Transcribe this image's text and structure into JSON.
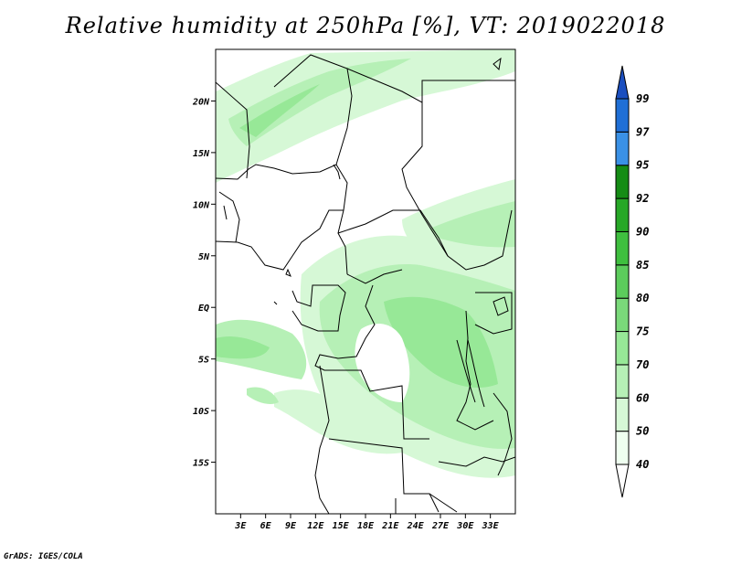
{
  "title": "Relative humidity at 250hPa [%], VT: 2019022018",
  "credit": "GrADS: IGES/COLA",
  "map": {
    "lon_range": [
      0,
      36
    ],
    "lat_range": [
      -20,
      25
    ],
    "x_ticks": [
      "3E",
      "6E",
      "9E",
      "12E",
      "15E",
      "18E",
      "21E",
      "24E",
      "27E",
      "30E",
      "33E"
    ],
    "x_tick_lons": [
      3,
      6,
      9,
      12,
      15,
      18,
      21,
      24,
      27,
      30,
      33
    ],
    "y_ticks": [
      "20N",
      "15N",
      "10N",
      "5N",
      "EQ",
      "5S",
      "10S",
      "15S"
    ],
    "y_tick_lats": [
      20,
      15,
      10,
      5,
      0,
      -5,
      -10,
      -15
    ]
  },
  "colorbar": {
    "labels": [
      "40",
      "50",
      "60",
      "70",
      "75",
      "80",
      "85",
      "90",
      "92",
      "95",
      "97",
      "99"
    ],
    "colors": [
      "#effff0",
      "#d6f8d6",
      "#b6f0b6",
      "#97e897",
      "#7ad97a",
      "#5ccc5c",
      "#3fbf3f",
      "#27a827",
      "#158c15",
      "#3a91e6",
      "#1f6fd6",
      "#1b4fbf"
    ]
  }
}
